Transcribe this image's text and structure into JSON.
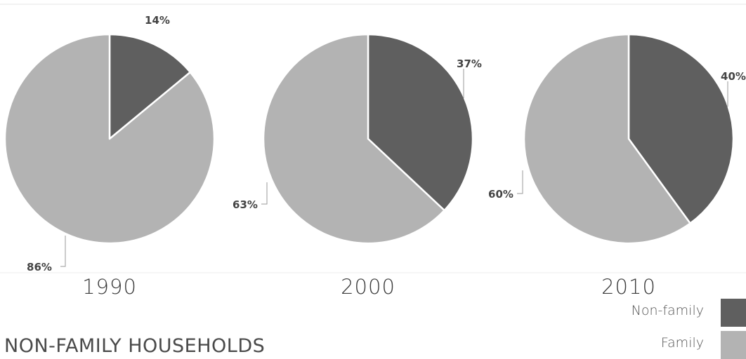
{
  "title": "NON-FAMILY HOUSEHOLDS",
  "colors": {
    "non_family": "#5f5f5f",
    "family": "#b3b3b3"
  },
  "legend": [
    {
      "name": "Non-family",
      "color": "#5f5f5f"
    },
    {
      "name": "Family",
      "color": "#b3b3b3"
    }
  ],
  "chart_data": [
    {
      "type": "pie",
      "title": "1990",
      "labels": [
        "Non-family",
        "Family"
      ],
      "values": [
        14,
        86
      ],
      "data_labels": [
        "14%",
        "86%"
      ]
    },
    {
      "type": "pie",
      "title": "2000",
      "labels": [
        "Non-family",
        "Family"
      ],
      "values": [
        37,
        63
      ],
      "data_labels": [
        "37%",
        "63%"
      ]
    },
    {
      "type": "pie",
      "title": "2010",
      "labels": [
        "Non-family",
        "Family"
      ],
      "values": [
        40,
        60
      ],
      "data_labels": [
        "40%",
        "60%"
      ]
    }
  ]
}
